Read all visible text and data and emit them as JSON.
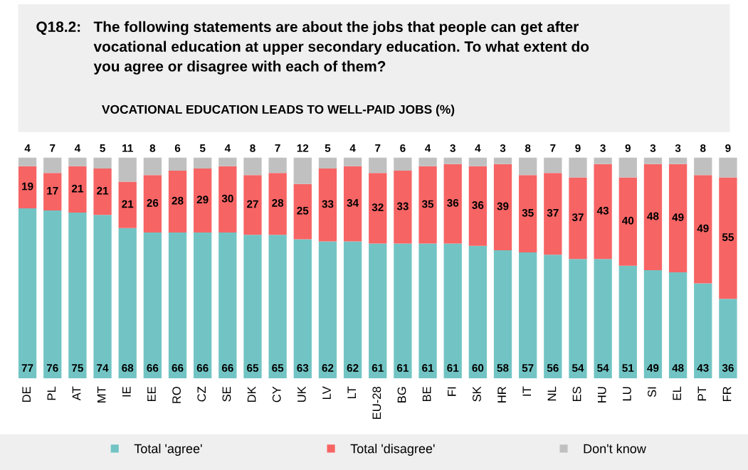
{
  "chart_data": {
    "type": "bar",
    "title": "Q18.2:   The following statements are about the jobs that people can get after\n              vocational education at upper secondary education. To what extent do\n              you agree or disagree with each of them?",
    "subtitle": "VOCATIONAL EDUCATION LEADS TO WELL-PAID JOBS (%)",
    "categories": [
      "DE",
      "PL",
      "AT",
      "MT",
      "IE",
      "EE",
      "RO",
      "CZ",
      "SE",
      "DK",
      "CY",
      "UK",
      "LV",
      "LT",
      "EU-28",
      "BG",
      "BE",
      "FI",
      "SK",
      "HR",
      "IT",
      "NL",
      "ES",
      "HU",
      "LU",
      "SI",
      "EL",
      "PT",
      "FR"
    ],
    "stacked": true,
    "data_labels": true,
    "legend": "bottom",
    "grid": false,
    "series": [
      {
        "name": "Total 'agree'",
        "color": "#72c4c4",
        "values": [
          77,
          76,
          75,
          74,
          68,
          66,
          66,
          66,
          66,
          65,
          65,
          63,
          62,
          62,
          61,
          61,
          61,
          61,
          60,
          58,
          57,
          56,
          54,
          54,
          51,
          49,
          48,
          43,
          36
        ]
      },
      {
        "name": "Total 'disagree'",
        "color": "#f76464",
        "values": [
          19,
          17,
          21,
          21,
          21,
          26,
          28,
          29,
          30,
          27,
          28,
          25,
          33,
          34,
          32,
          33,
          35,
          36,
          36,
          39,
          35,
          37,
          37,
          43,
          40,
          48,
          49,
          49,
          55
        ]
      },
      {
        "name": "Don't know",
        "color": "#c0c0c0",
        "values": [
          4,
          7,
          4,
          5,
          11,
          8,
          6,
          5,
          4,
          8,
          7,
          12,
          5,
          4,
          7,
          6,
          4,
          3,
          4,
          3,
          8,
          7,
          9,
          3,
          9,
          3,
          3,
          8,
          9
        ]
      }
    ]
  }
}
